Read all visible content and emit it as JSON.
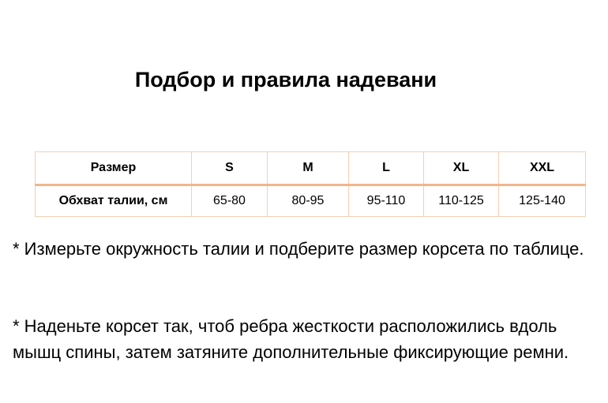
{
  "title": "Подбор и правила надевани",
  "table": {
    "header": [
      "Размер",
      "S",
      "M",
      "L",
      "XL",
      "XXL"
    ],
    "row": [
      "Обхват талии, см",
      "65-80",
      "80-95",
      "95-110",
      "110-125",
      "125-140"
    ]
  },
  "paragraphs": [
    "* Измерьте окружность талии и подберите размер корсета по таблице.",
    "* Наденьте корсет так, чтоб ребра жесткости расположились вдоль мышц спины, затем затяните дополнительные фиксирующие ремни."
  ]
}
